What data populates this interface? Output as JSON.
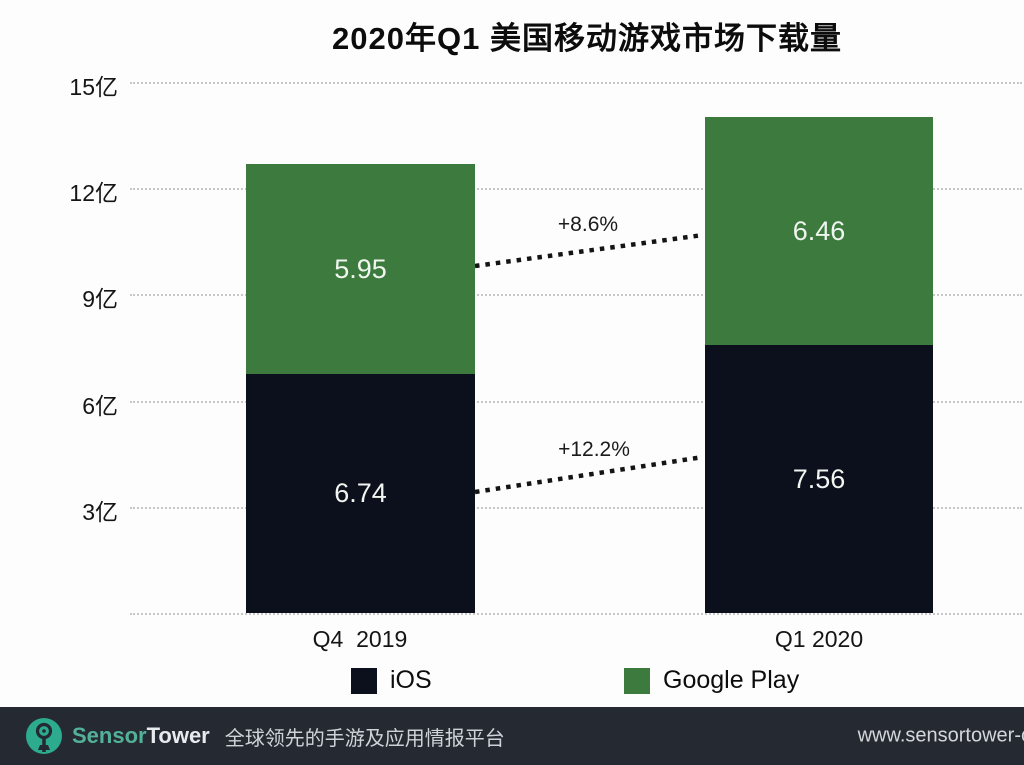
{
  "chart_data": {
    "type": "bar",
    "stacked": true,
    "title": "2020年Q1 美国移动游戏市场下载量",
    "categories": [
      "Q4  2019",
      "Q1 2020"
    ],
    "series": [
      {
        "name": "iOS",
        "color": "#0c101d",
        "values": [
          6.74,
          7.56
        ]
      },
      {
        "name": "Google Play",
        "color": "#3c7b3d",
        "values": [
          5.95,
          6.46
        ]
      }
    ],
    "unit": "亿",
    "ylim": [
      0,
      15
    ],
    "yticks": [
      {
        "value": 3,
        "label": "3亿"
      },
      {
        "value": 6,
        "label": "6亿"
      },
      {
        "value": 9,
        "label": "9亿"
      },
      {
        "value": 12,
        "label": "12亿"
      },
      {
        "value": 15,
        "label": "15亿"
      }
    ],
    "grid": "dotted-horizontal",
    "legend_position": "bottom",
    "annotations": [
      {
        "label": "+8.6%",
        "series": "Google Play",
        "from_category": "Q4  2019",
        "to_category": "Q1 2020"
      },
      {
        "label": "+12.2%",
        "series": "iOS",
        "from_category": "Q4  2019",
        "to_category": "Q1 2020"
      }
    ]
  },
  "legend": {
    "items": [
      {
        "label": "iOS",
        "color": "#0c101d"
      },
      {
        "label": "Google Play",
        "color": "#3c7b3d"
      }
    ]
  },
  "footer": {
    "brand_sensor": "Sensor",
    "brand_tower": "Tower",
    "tagline": "全球领先的手游及应用情报平台",
    "url": "www.sensortower-c",
    "bg_color": "#252a32",
    "accent_color": "#2cab8e"
  }
}
